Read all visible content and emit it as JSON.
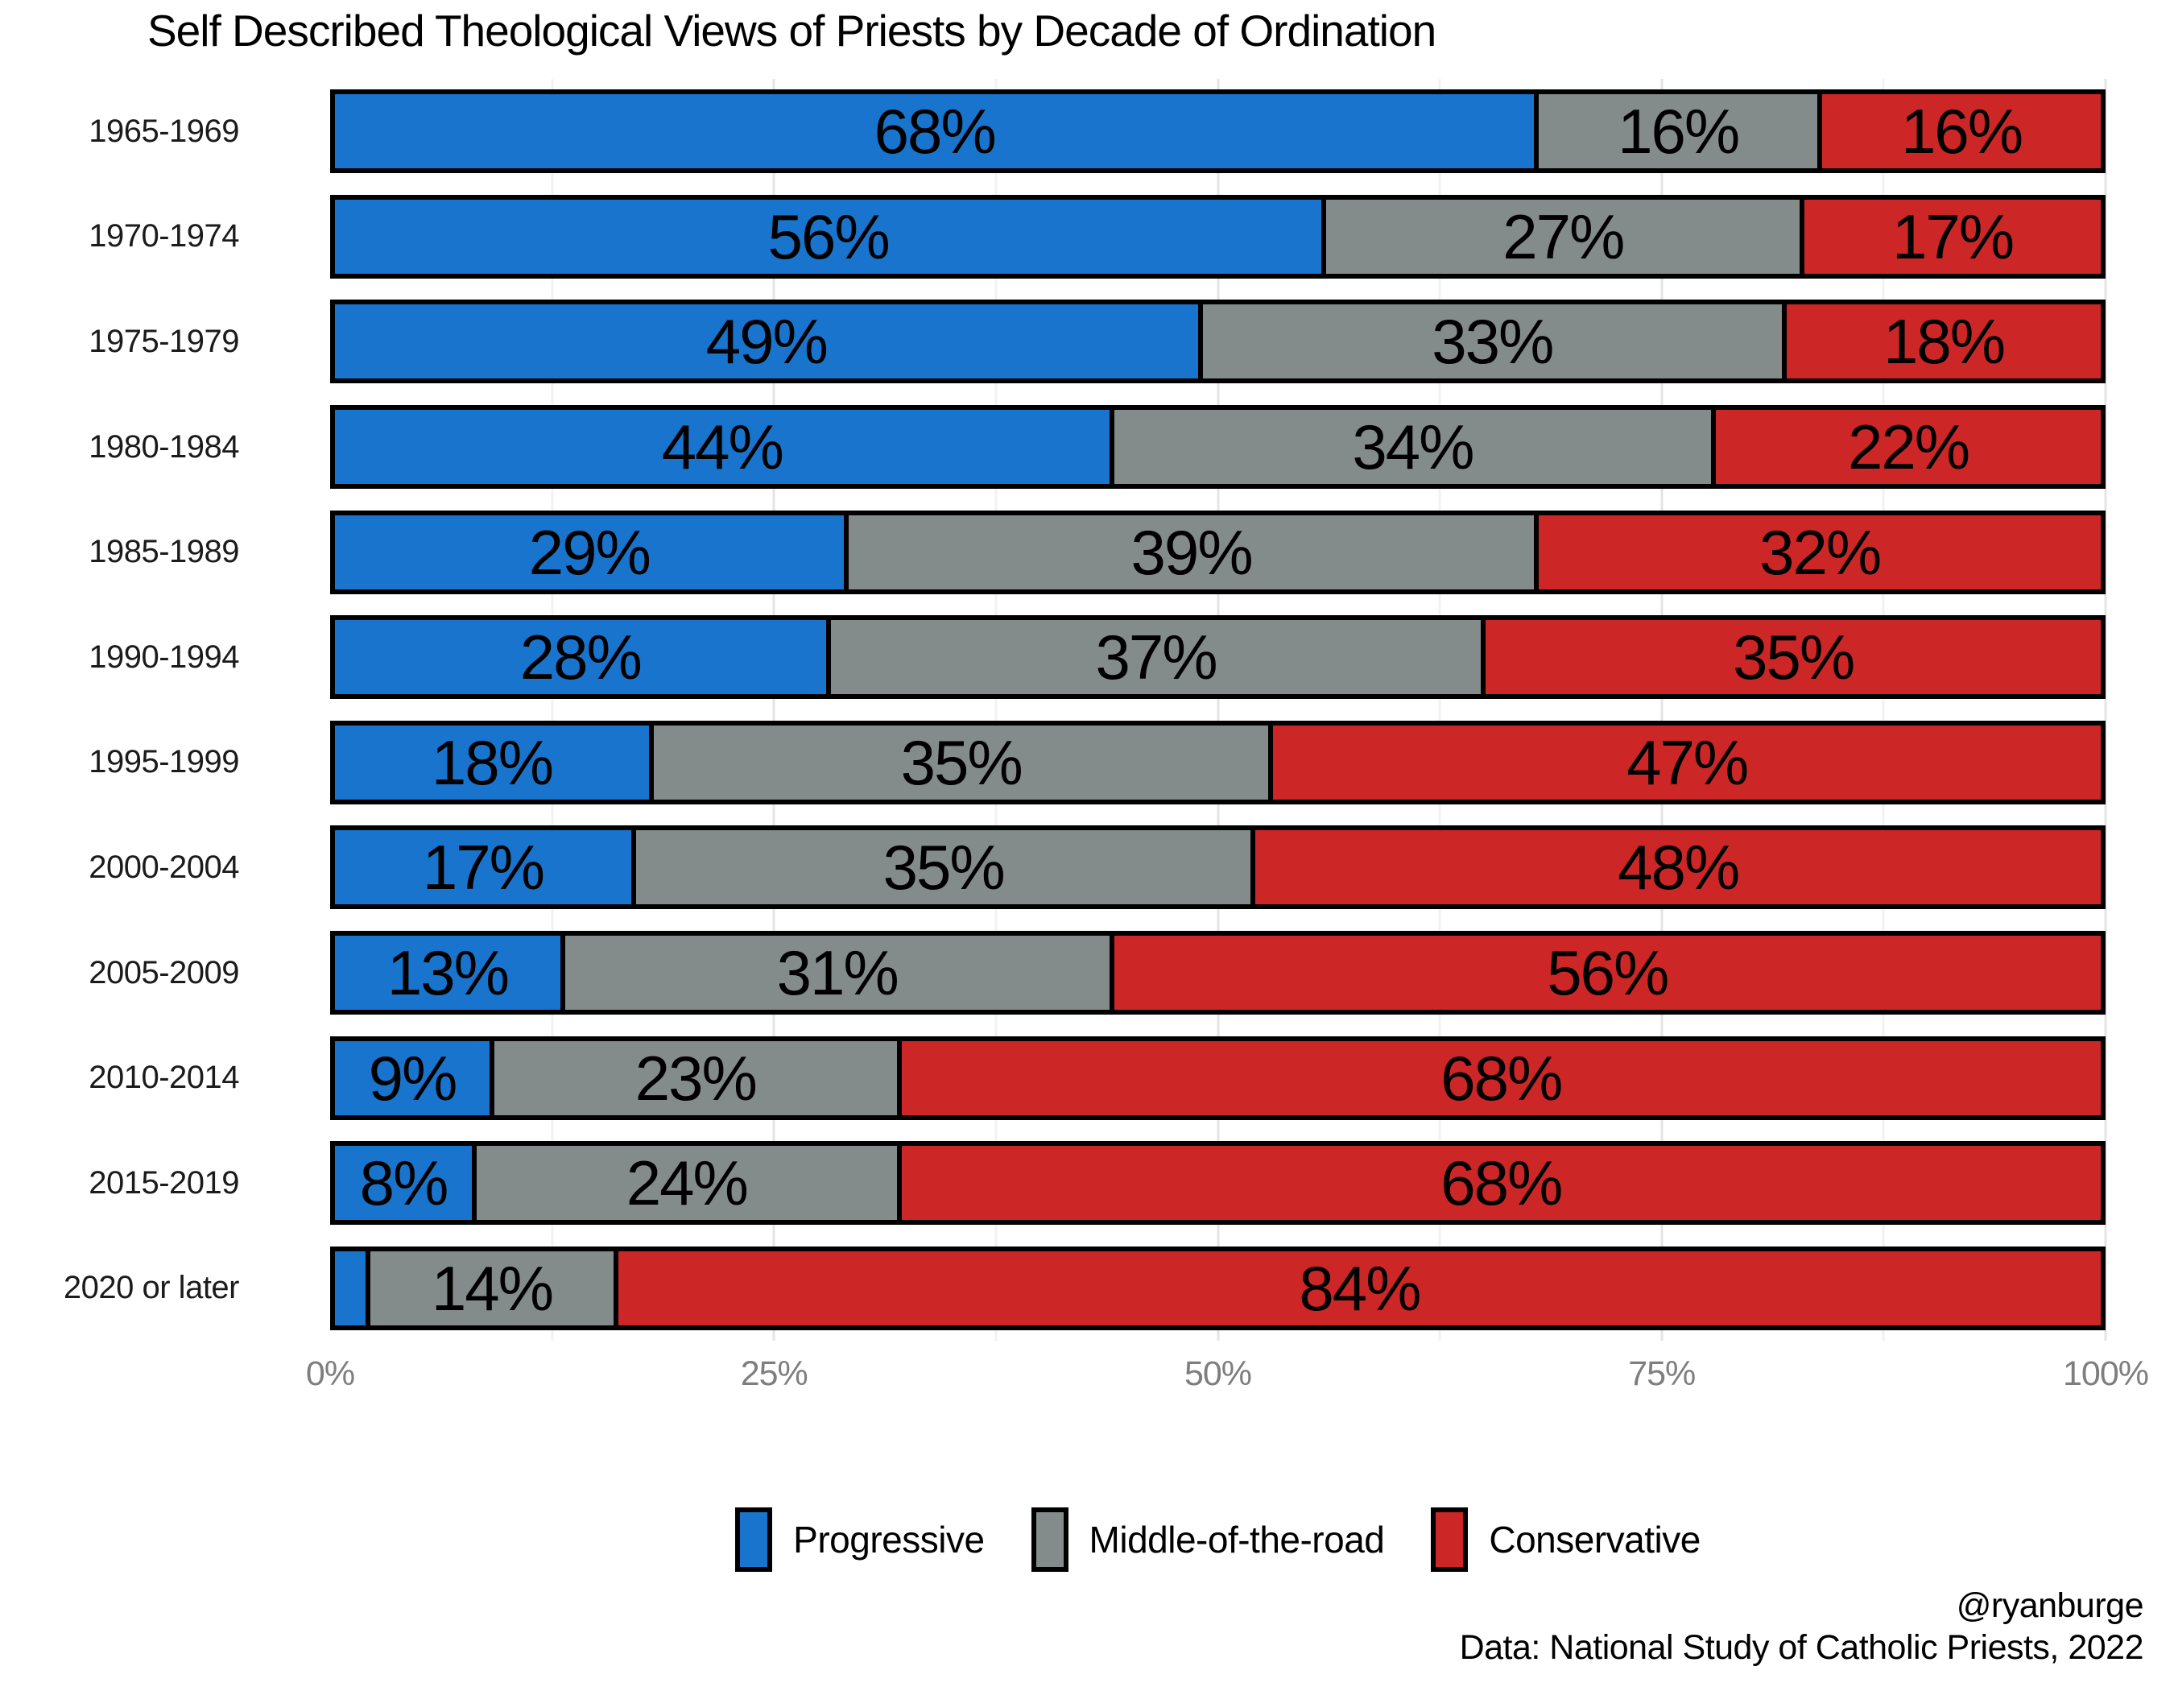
{
  "title": "Self Described Theological Views of Priests by Decade of Ordination",
  "attribution": {
    "handle": "@ryanburge",
    "source": "Data: National Study of Catholic Priests, 2022"
  },
  "chart_data": {
    "type": "bar",
    "stacked": true,
    "orientation": "horizontal",
    "title": "Self Described Theological Views of Priests by Decade of Ordination",
    "categories": [
      "1965-1969",
      "1970-1974",
      "1975-1979",
      "1980-1984",
      "1985-1989",
      "1990-1994",
      "1995-1999",
      "2000-2004",
      "2005-2009",
      "2010-2014",
      "2015-2019",
      "2020 or later"
    ],
    "series": [
      {
        "name": "Progressive",
        "color": "#1874CD",
        "values": [
          68,
          56,
          49,
          44,
          29,
          28,
          18,
          17,
          13,
          9,
          8,
          2
        ]
      },
      {
        "name": "Middle-of-the-road",
        "color": "#838B8B",
        "values": [
          16,
          27,
          33,
          34,
          39,
          37,
          35,
          35,
          31,
          23,
          24,
          14
        ]
      },
      {
        "name": "Conservative",
        "color": "#CD2626",
        "values": [
          16,
          17,
          18,
          22,
          32,
          35,
          47,
          48,
          56,
          68,
          68,
          84
        ]
      }
    ],
    "value_label_format": "{value}%",
    "min_label_pct": 5,
    "x_ticks": [
      "0%",
      "25%",
      "50%",
      "75%",
      "100%"
    ],
    "x_tick_values": [
      0,
      25,
      50,
      75,
      100
    ],
    "x_minor_tick_values": [
      12.5,
      37.5,
      62.5,
      87.5
    ],
    "xlim": [
      0,
      100
    ],
    "grid": "vertical-major-and-minor",
    "legend_position": "bottom",
    "bar_border_color": "#000000",
    "axis_tick_color": "#7e7e7e"
  }
}
